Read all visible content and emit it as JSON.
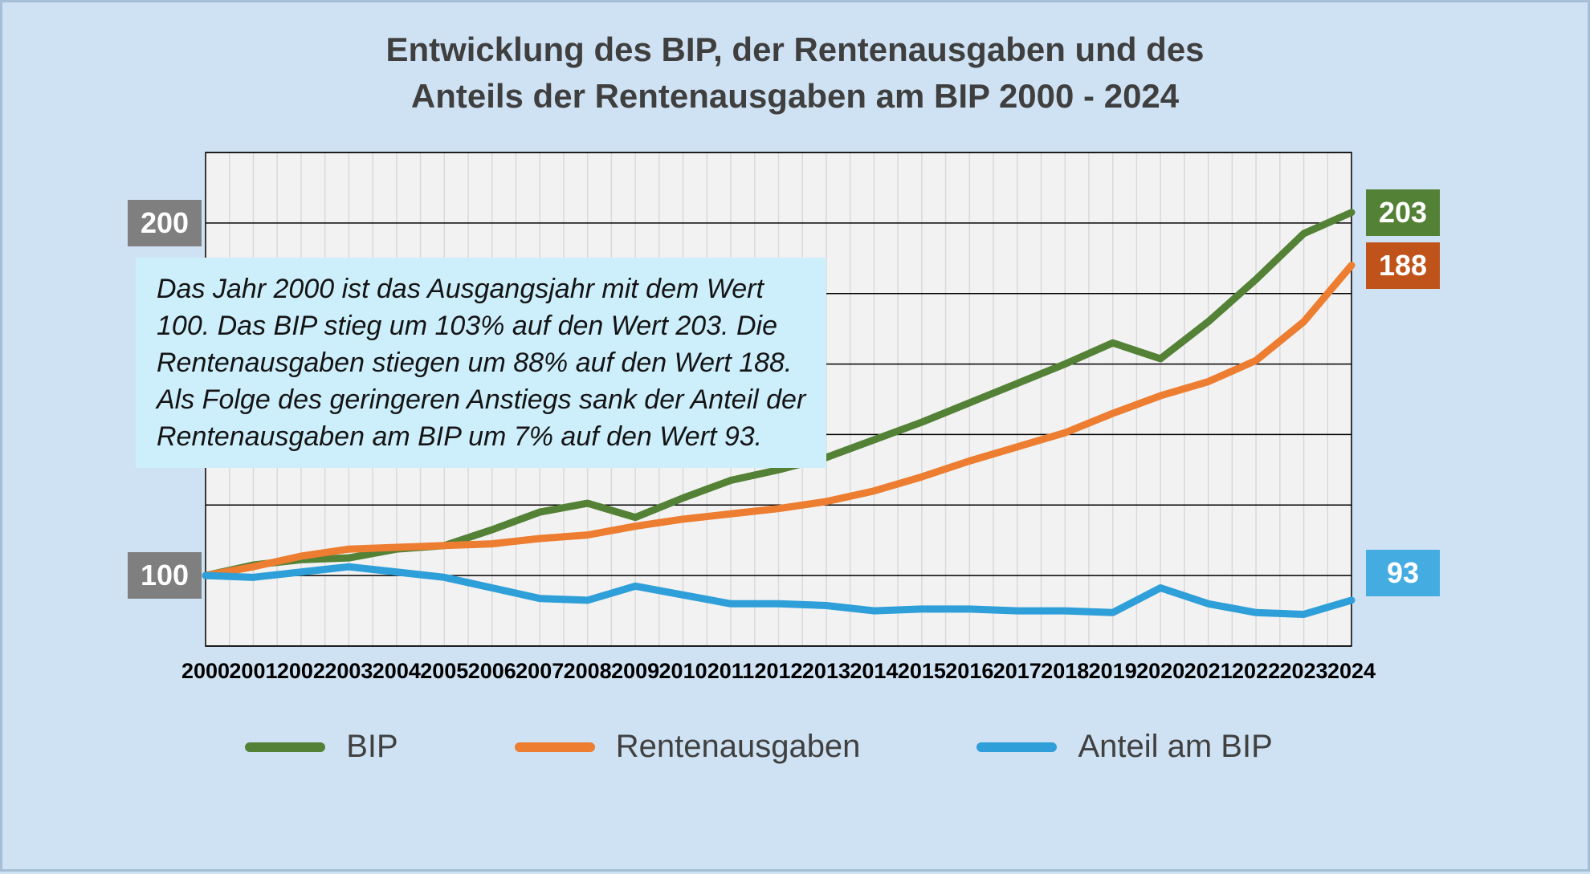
{
  "title": {
    "line1": "Entwicklung des BIP, der Rentenausgaben und des",
    "line2": "Anteils der Rentenausgaben am BIP 2000 - 2024"
  },
  "annotation": {
    "lines": [
      "Das Jahr 2000 ist das Ausgangsjahr mit dem Wert",
      "100. Das BIP stieg um 103% auf den Wert 203. Die",
      "Rentenausgaben stiegen um 88% auf den Wert 188.",
      "Als Folge des geringeren Anstiegs sank der Anteil der",
      "Rentenausgaben am BIP um 7% auf den Wert 93."
    ]
  },
  "colors": {
    "page_background": "#cfe2f3",
    "plot_background": "#f2f2f2",
    "vertical_gridline": "#d9d9d9",
    "horizontal_gridline": "#000000",
    "axis_box_gray": "#7f7f7f",
    "annotation_background": "#cdeefb",
    "bip_green": "#538135",
    "renten_orange": "#ed7d31",
    "renten_box_dark_orange": "#c0531a",
    "anteil_blue": "#2e9fd9",
    "anteil_box_light_blue": "#45ace2"
  },
  "chart_data": {
    "type": "line",
    "title": "Entwicklung des BIP, der Rentenausgaben und des Anteils der Rentenausgaben am BIP 2000 - 2024",
    "x": [
      2000,
      2001,
      2002,
      2003,
      2004,
      2005,
      2006,
      2007,
      2008,
      2009,
      2010,
      2011,
      2012,
      2013,
      2014,
      2015,
      2016,
      2017,
      2018,
      2019,
      2020,
      2021,
      2022,
      2023,
      2024
    ],
    "ylim": [
      80,
      220
    ],
    "grid_step": 20,
    "grid": "on",
    "legend_position": "bottom",
    "series": [
      {
        "name": "BIP",
        "color": "#538135",
        "values": [
          100,
          103,
          104.5,
          105,
          107.5,
          108.5,
          113,
          118,
          120.5,
          116.5,
          122,
          127,
          130,
          133.5,
          138.5,
          143.5,
          149,
          154.5,
          160,
          166,
          161.5,
          172,
          184,
          197,
          203
        ]
      },
      {
        "name": "Rentenausgaben",
        "color": "#ed7d31",
        "values": [
          100,
          102.5,
          105.5,
          107.5,
          108,
          108.5,
          109,
          110.5,
          111.5,
          114,
          116,
          117.5,
          119,
          121,
          124,
          128,
          132.5,
          136.5,
          140.5,
          146,
          151,
          155,
          161,
          172,
          188
        ]
      },
      {
        "name": "Anteil am BIP",
        "color": "#2e9fd9",
        "values": [
          100,
          99.5,
          101,
          102.5,
          101,
          99.5,
          96.5,
          93.5,
          93,
          97,
          94.5,
          92,
          92,
          91.5,
          90,
          90.5,
          90.5,
          90,
          90,
          89.5,
          96.5,
          92,
          89.5,
          89,
          93
        ]
      }
    ],
    "axis_labels": [
      {
        "text": "200",
        "value": 200,
        "bg": "#7f7f7f"
      },
      {
        "text": "100",
        "value": 100,
        "bg": "#7f7f7f"
      }
    ],
    "end_labels": [
      {
        "text": "203",
        "value": 203,
        "bg": "#538135",
        "dy": 0
      },
      {
        "text": "188",
        "value": 188,
        "bg": "#c0531a",
        "dy": 0
      },
      {
        "text": "93",
        "value": 93,
        "bg": "#45ace2",
        "dy": -34
      }
    ]
  }
}
